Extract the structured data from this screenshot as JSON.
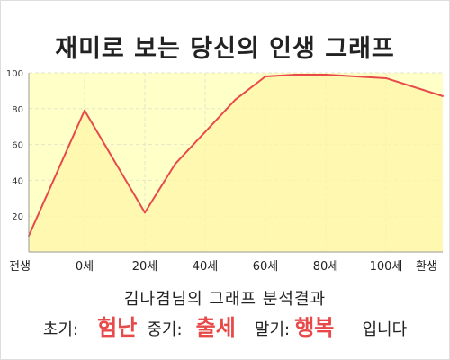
{
  "title": "재미로 보는 당신의 인생 그래프",
  "subtitle": "김나겸님의 그래프 분석결과",
  "result": {
    "early_label": "초기:",
    "early_value": "험난",
    "mid_label": "중기:",
    "mid_value": "출세",
    "late_label": "말기:",
    "late_value": "행복",
    "suffix": "입니다"
  },
  "colors": {
    "line": "#e84a4a",
    "fill": "#ffffc8",
    "highlight": "#e84a4a",
    "grid": "#e6e6c8"
  },
  "chart_data": {
    "type": "area",
    "x_ticks": [
      "전생",
      "0세",
      "20세",
      "40세",
      "60세",
      "80세",
      "100세",
      "환생"
    ],
    "y_ticks": [
      "20",
      "40",
      "60",
      "80",
      "100"
    ],
    "ylim": [
      0,
      100
    ],
    "points": [
      {
        "x": "전생",
        "y": 9
      },
      {
        "x": "0세",
        "y": 79
      },
      {
        "x": "20세",
        "y": 22
      },
      {
        "x": "30세",
        "y": 49
      },
      {
        "x": "50세",
        "y": 85
      },
      {
        "x": "60세",
        "y": 98
      },
      {
        "x": "70세",
        "y": 99
      },
      {
        "x": "80세",
        "y": 99
      },
      {
        "x": "100세",
        "y": 97
      },
      {
        "x": "환생",
        "y": 87
      }
    ],
    "grid": true,
    "title": "",
    "xlabel": "",
    "ylabel": ""
  }
}
